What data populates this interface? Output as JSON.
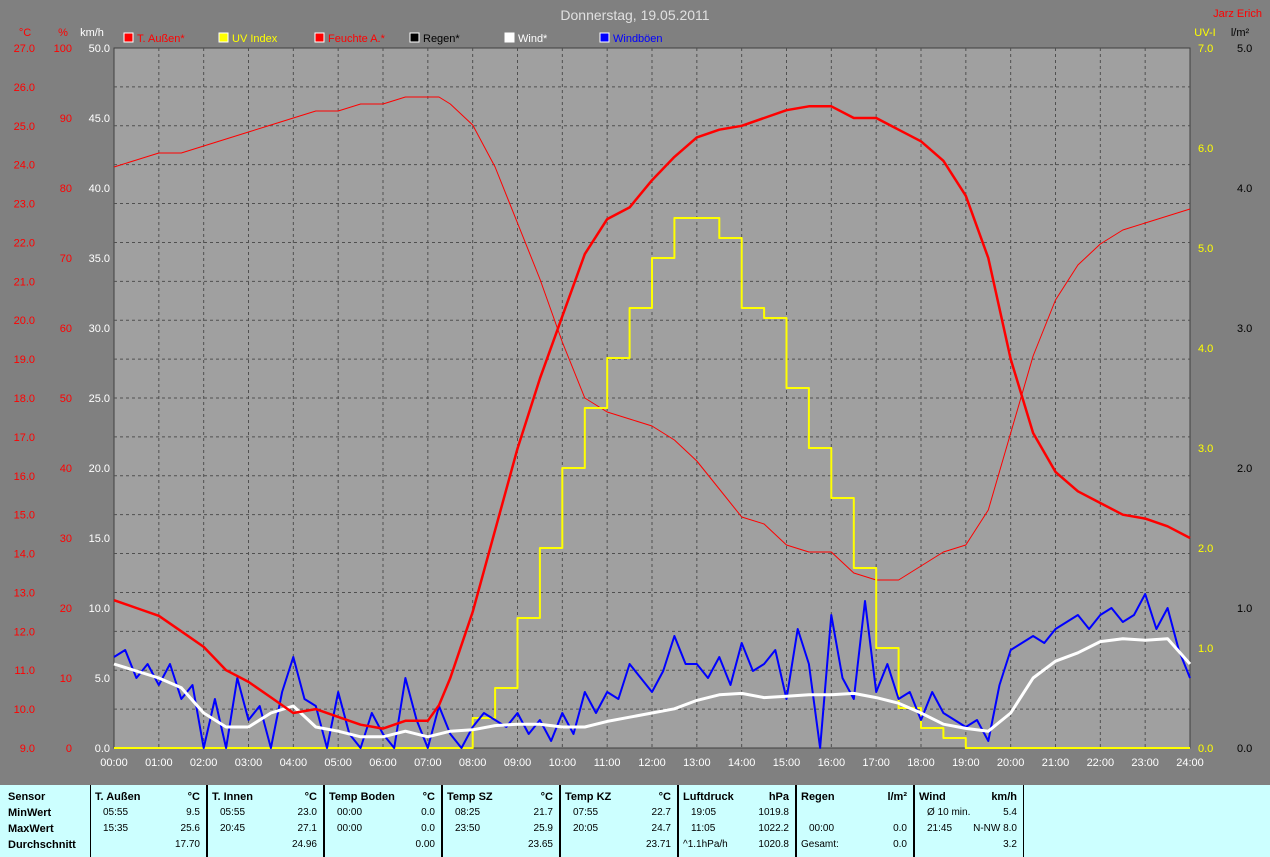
{
  "header": {
    "title": "Donnerstag, 19.05.2011",
    "author": "Jarz Erich"
  },
  "axes": {
    "temp": {
      "unit": "°C",
      "ticks": [
        "27.0",
        "26.0",
        "25.0",
        "24.0",
        "23.0",
        "22.0",
        "21.0",
        "20.0",
        "19.0",
        "18.0",
        "17.0",
        "16.0",
        "15.0",
        "14.0",
        "13.0",
        "12.0",
        "11.0",
        "10.0",
        "9.0"
      ]
    },
    "humidity": {
      "unit": "%",
      "ticks": [
        "100",
        "90",
        "80",
        "70",
        "60",
        "50",
        "40",
        "30",
        "20",
        "10",
        "0"
      ]
    },
    "wind": {
      "unit": "km/h",
      "ticks": [
        "50.0",
        "45.0",
        "40.0",
        "35.0",
        "30.0",
        "25.0",
        "20.0",
        "15.0",
        "10.0",
        "5.0",
        "0.0"
      ]
    },
    "uv": {
      "unit": "UV-I",
      "ticks": [
        "7.0",
        "6.0",
        "5.0",
        "4.0",
        "3.0",
        "2.0",
        "1.0",
        "0.0"
      ]
    },
    "rain": {
      "unit": "l/m²",
      "ticks": [
        "5.0",
        "4.0",
        "3.0",
        "2.0",
        "1.0",
        "0.0"
      ]
    },
    "time_ticks": [
      "00:00",
      "01:00",
      "02:00",
      "03:00",
      "04:00",
      "05:00",
      "06:00",
      "07:00",
      "08:00",
      "09:00",
      "10:00",
      "11:00",
      "12:00",
      "13:00",
      "14:00",
      "15:00",
      "16:00",
      "17:00",
      "18:00",
      "19:00",
      "20:00",
      "21:00",
      "22:00",
      "23:00",
      "24:00"
    ]
  },
  "legend": [
    {
      "label": "T. Außen*",
      "color": "#ff0000"
    },
    {
      "label": "UV Index",
      "color": "#ffff00"
    },
    {
      "label": "Feuchte A.*",
      "color": "#ff0000"
    },
    {
      "label": "Regen*",
      "color": "#000000"
    },
    {
      "label": "Wind*",
      "color": "#ffffff"
    },
    {
      "label": "Windböen",
      "color": "#0000ff"
    }
  ],
  "colors": {
    "plot_bg": "#a0a0a0",
    "red_axis": "#ff0000",
    "uv_axis": "#ffff00",
    "temp": "#ff0000",
    "humidity": "#ff0000",
    "uv": "#ffff00",
    "wind": "#ffffff",
    "gusts": "#0000ff"
  },
  "chart_data": {
    "type": "line",
    "title": "Donnerstag, 19.05.2011",
    "x_unit": "hour",
    "xlim": [
      0,
      24
    ],
    "grid": true,
    "legend_position": "top",
    "series": [
      {
        "name": "T. Außen*",
        "axis": "°C",
        "ylim": [
          9,
          27
        ],
        "x": [
          0,
          0.5,
          1,
          1.5,
          2,
          2.5,
          3,
          3.5,
          4,
          4.5,
          5,
          5.5,
          6,
          6.5,
          7,
          7.25,
          7.5,
          8,
          8.5,
          9,
          9.5,
          10,
          10.5,
          11,
          11.5,
          12,
          12.5,
          13,
          13.5,
          14,
          14.5,
          15,
          15.5,
          16,
          16.5,
          17,
          17.5,
          18,
          18.5,
          19,
          19.5,
          20,
          20.5,
          21,
          21.5,
          22,
          22.5,
          23,
          23.5,
          24
        ],
        "y": [
          12.8,
          12.6,
          12.4,
          12.0,
          11.6,
          11.0,
          10.7,
          10.3,
          9.9,
          10.0,
          9.8,
          9.6,
          9.5,
          9.7,
          9.7,
          10.1,
          10.8,
          12.5,
          14.6,
          16.7,
          18.5,
          20.1,
          21.7,
          22.6,
          22.9,
          23.6,
          24.2,
          24.7,
          24.9,
          25.0,
          25.2,
          25.4,
          25.5,
          25.5,
          25.2,
          25.2,
          24.9,
          24.6,
          24.1,
          23.2,
          21.6,
          19.0,
          17.1,
          16.1,
          15.6,
          15.3,
          15.0,
          14.9,
          14.7,
          14.4
        ]
      },
      {
        "name": "Feuchte A.*",
        "axis": "%",
        "ylim": [
          0,
          100
        ],
        "x": [
          0,
          0.5,
          1,
          1.5,
          2,
          2.5,
          3,
          3.5,
          4,
          4.5,
          5,
          5.5,
          6,
          6.5,
          7,
          7.25,
          7.5,
          8,
          8.5,
          9,
          9.5,
          10,
          10.5,
          11,
          11.5,
          12,
          12.5,
          13,
          13.5,
          14,
          14.5,
          15,
          15.5,
          16,
          16.5,
          17,
          17.5,
          18,
          18.5,
          19,
          19.5,
          20,
          20.5,
          21,
          21.5,
          22,
          22.5,
          23,
          23.5,
          24
        ],
        "y": [
          83,
          84,
          85,
          85,
          86,
          87,
          88,
          89,
          90,
          91,
          91,
          92,
          92,
          93,
          93,
          93,
          92,
          89,
          83,
          75,
          67,
          58,
          50,
          48,
          47,
          46,
          44,
          41,
          37,
          33,
          32,
          29,
          28,
          28,
          25,
          24,
          24,
          26,
          28,
          29,
          34,
          45,
          56,
          64,
          69,
          72,
          74,
          75,
          76,
          77
        ]
      },
      {
        "name": "UV Index",
        "axis": "UV-I",
        "ylim": [
          0,
          7
        ],
        "x": [
          0,
          7.5,
          8,
          8.5,
          9,
          9.5,
          10,
          10.5,
          11,
          11.5,
          12,
          12.5,
          13,
          13.5,
          14,
          14.5,
          15,
          15.5,
          16,
          16.5,
          17,
          17.5,
          18,
          18.5,
          19,
          24
        ],
        "y": [
          0,
          0,
          0.3,
          0.6,
          1.3,
          2.0,
          2.8,
          3.4,
          3.9,
          4.4,
          4.9,
          5.3,
          5.3,
          5.1,
          4.4,
          4.3,
          3.6,
          3.0,
          2.5,
          1.8,
          1.0,
          0.4,
          0.2,
          0.1,
          0,
          0
        ]
      },
      {
        "name": "Wind*",
        "axis": "km/h",
        "ylim": [
          0,
          50
        ],
        "x": [
          0,
          0.5,
          1,
          1.5,
          2,
          2.5,
          3,
          3.5,
          4,
          4.5,
          5,
          5.5,
          6,
          6.5,
          7,
          7.5,
          8,
          8.5,
          9,
          9.5,
          10,
          10.5,
          11,
          11.5,
          12,
          12.5,
          13,
          13.5,
          14,
          14.5,
          15,
          15.5,
          16,
          16.5,
          17,
          17.5,
          18,
          18.5,
          19,
          19.5,
          20,
          20.5,
          21,
          21.5,
          22,
          22.5,
          23,
          23.5,
          24
        ],
        "y": [
          6.0,
          5.5,
          5.0,
          4.3,
          2.5,
          1.5,
          1.5,
          2.5,
          3.0,
          1.5,
          1.2,
          0.8,
          0.8,
          1.2,
          0.8,
          1.2,
          1.3,
          1.6,
          1.7,
          1.7,
          1.5,
          1.5,
          1.9,
          2.2,
          2.5,
          2.8,
          3.4,
          3.8,
          3.9,
          3.6,
          3.7,
          3.8,
          3.8,
          3.9,
          3.6,
          3.2,
          2.5,
          1.7,
          1.4,
          1.2,
          2.5,
          5.0,
          6.2,
          6.8,
          7.6,
          7.8,
          7.7,
          7.8,
          6.0
        ]
      },
      {
        "name": "Windböen",
        "axis": "km/h",
        "ylim": [
          0,
          50
        ],
        "x": [
          0,
          0.25,
          0.5,
          0.75,
          1,
          1.25,
          1.5,
          1.75,
          2,
          2.25,
          2.5,
          2.75,
          3,
          3.25,
          3.5,
          3.75,
          4,
          4.25,
          4.5,
          4.75,
          5,
          5.25,
          5.5,
          5.75,
          6,
          6.25,
          6.5,
          6.75,
          7,
          7.25,
          7.5,
          7.75,
          8,
          8.25,
          8.5,
          8.75,
          9,
          9.25,
          9.5,
          9.75,
          10,
          10.25,
          10.5,
          10.75,
          11,
          11.25,
          11.5,
          11.75,
          12,
          12.25,
          12.5,
          12.75,
          13,
          13.25,
          13.5,
          13.75,
          14,
          14.25,
          14.5,
          14.75,
          15,
          15.25,
          15.5,
          15.75,
          16,
          16.25,
          16.5,
          16.75,
          17,
          17.25,
          17.5,
          17.75,
          18,
          18.25,
          18.5,
          18.75,
          19,
          19.25,
          19.5,
          19.75,
          20,
          20.25,
          20.5,
          20.75,
          21,
          21.25,
          21.5,
          21.75,
          22,
          22.25,
          22.5,
          22.75,
          23,
          23.25,
          23.5,
          23.75,
          24
        ],
        "y": [
          6.5,
          7.0,
          5.0,
          6.0,
          4.5,
          6.0,
          3.5,
          4.5,
          0,
          3.5,
          0,
          5.0,
          2.0,
          3.0,
          0,
          4.0,
          6.5,
          3.5,
          3.0,
          0,
          4.0,
          1.0,
          0,
          2.5,
          1.0,
          0,
          5.0,
          2.0,
          0,
          3.0,
          1.0,
          0,
          1.5,
          2.5,
          2.0,
          1.5,
          2.5,
          1.0,
          2.0,
          0.5,
          2.5,
          1.0,
          4.0,
          2.5,
          4.0,
          3.5,
          6.0,
          5.0,
          4.0,
          5.5,
          8.0,
          6.0,
          6.0,
          5.0,
          6.5,
          4.5,
          7.5,
          5.5,
          6.0,
          7.0,
          3.5,
          8.5,
          6.0,
          0,
          9.5,
          5.0,
          3.5,
          10.5,
          4.0,
          6.0,
          3.5,
          4.0,
          2.0,
          4.0,
          2.5,
          2.0,
          1.5,
          2.0,
          0.5,
          4.5,
          7.0,
          7.5,
          8.0,
          7.5,
          8.5,
          9.0,
          9.5,
          8.5,
          9.5,
          10.0,
          9.0,
          9.5,
          11.0,
          8.5,
          10.0,
          7.0,
          5.0
        ]
      }
    ]
  },
  "stats": {
    "sensor": {
      "header": "Sensor",
      "rows": [
        "MinWert",
        "MaxWert",
        "Durchschnitt"
      ]
    },
    "blocks": [
      {
        "name": "T. Außen",
        "unit": "°C",
        "min_time": "05:55",
        "min_val": "9.5",
        "max_time": "15:35",
        "max_val": "25.6",
        "avg_label": "",
        "avg": "17.70"
      },
      {
        "name": "T. Innen",
        "unit": "°C",
        "min_time": "05:55",
        "min_val": "23.0",
        "max_time": "20:45",
        "max_val": "27.1",
        "avg_label": "",
        "avg": "24.96"
      },
      {
        "name": "Temp Boden",
        "unit": "°C",
        "min_time": "00:00",
        "min_val": "0.0",
        "max_time": "00:00",
        "max_val": "0.0",
        "avg_label": "",
        "avg": "0.00"
      },
      {
        "name": "Temp SZ",
        "unit": "°C",
        "min_time": "08:25",
        "min_val": "21.7",
        "max_time": "23:50",
        "max_val": "25.9",
        "avg_label": "",
        "avg": "23.65"
      },
      {
        "name": "Temp KZ",
        "unit": "°C",
        "min_time": "07:55",
        "min_val": "22.7",
        "max_time": "20:05",
        "max_val": "24.7",
        "avg_label": "",
        "avg": "23.71"
      },
      {
        "name": "Luftdruck",
        "unit": "hPa",
        "min_time": "19:05",
        "min_val": "1019.8",
        "max_time": "11:05",
        "max_val": "1022.2",
        "avg_label": "^1.1hPa/h",
        "avg": "1020.8"
      },
      {
        "name": "Regen",
        "unit": "l/m²",
        "min_time": "",
        "min_val": "",
        "max_time": "00:00",
        "max_val": "0.0",
        "avg_label": "Gesamt:",
        "avg": "0.0"
      },
      {
        "name": "Wind",
        "unit": "km/h",
        "min_time": "Ø 10 min.",
        "min_val": "5.4",
        "max_time": "21:45",
        "max_val": "N-NW 8.0",
        "avg_label": "",
        "avg": "3.2"
      }
    ]
  }
}
